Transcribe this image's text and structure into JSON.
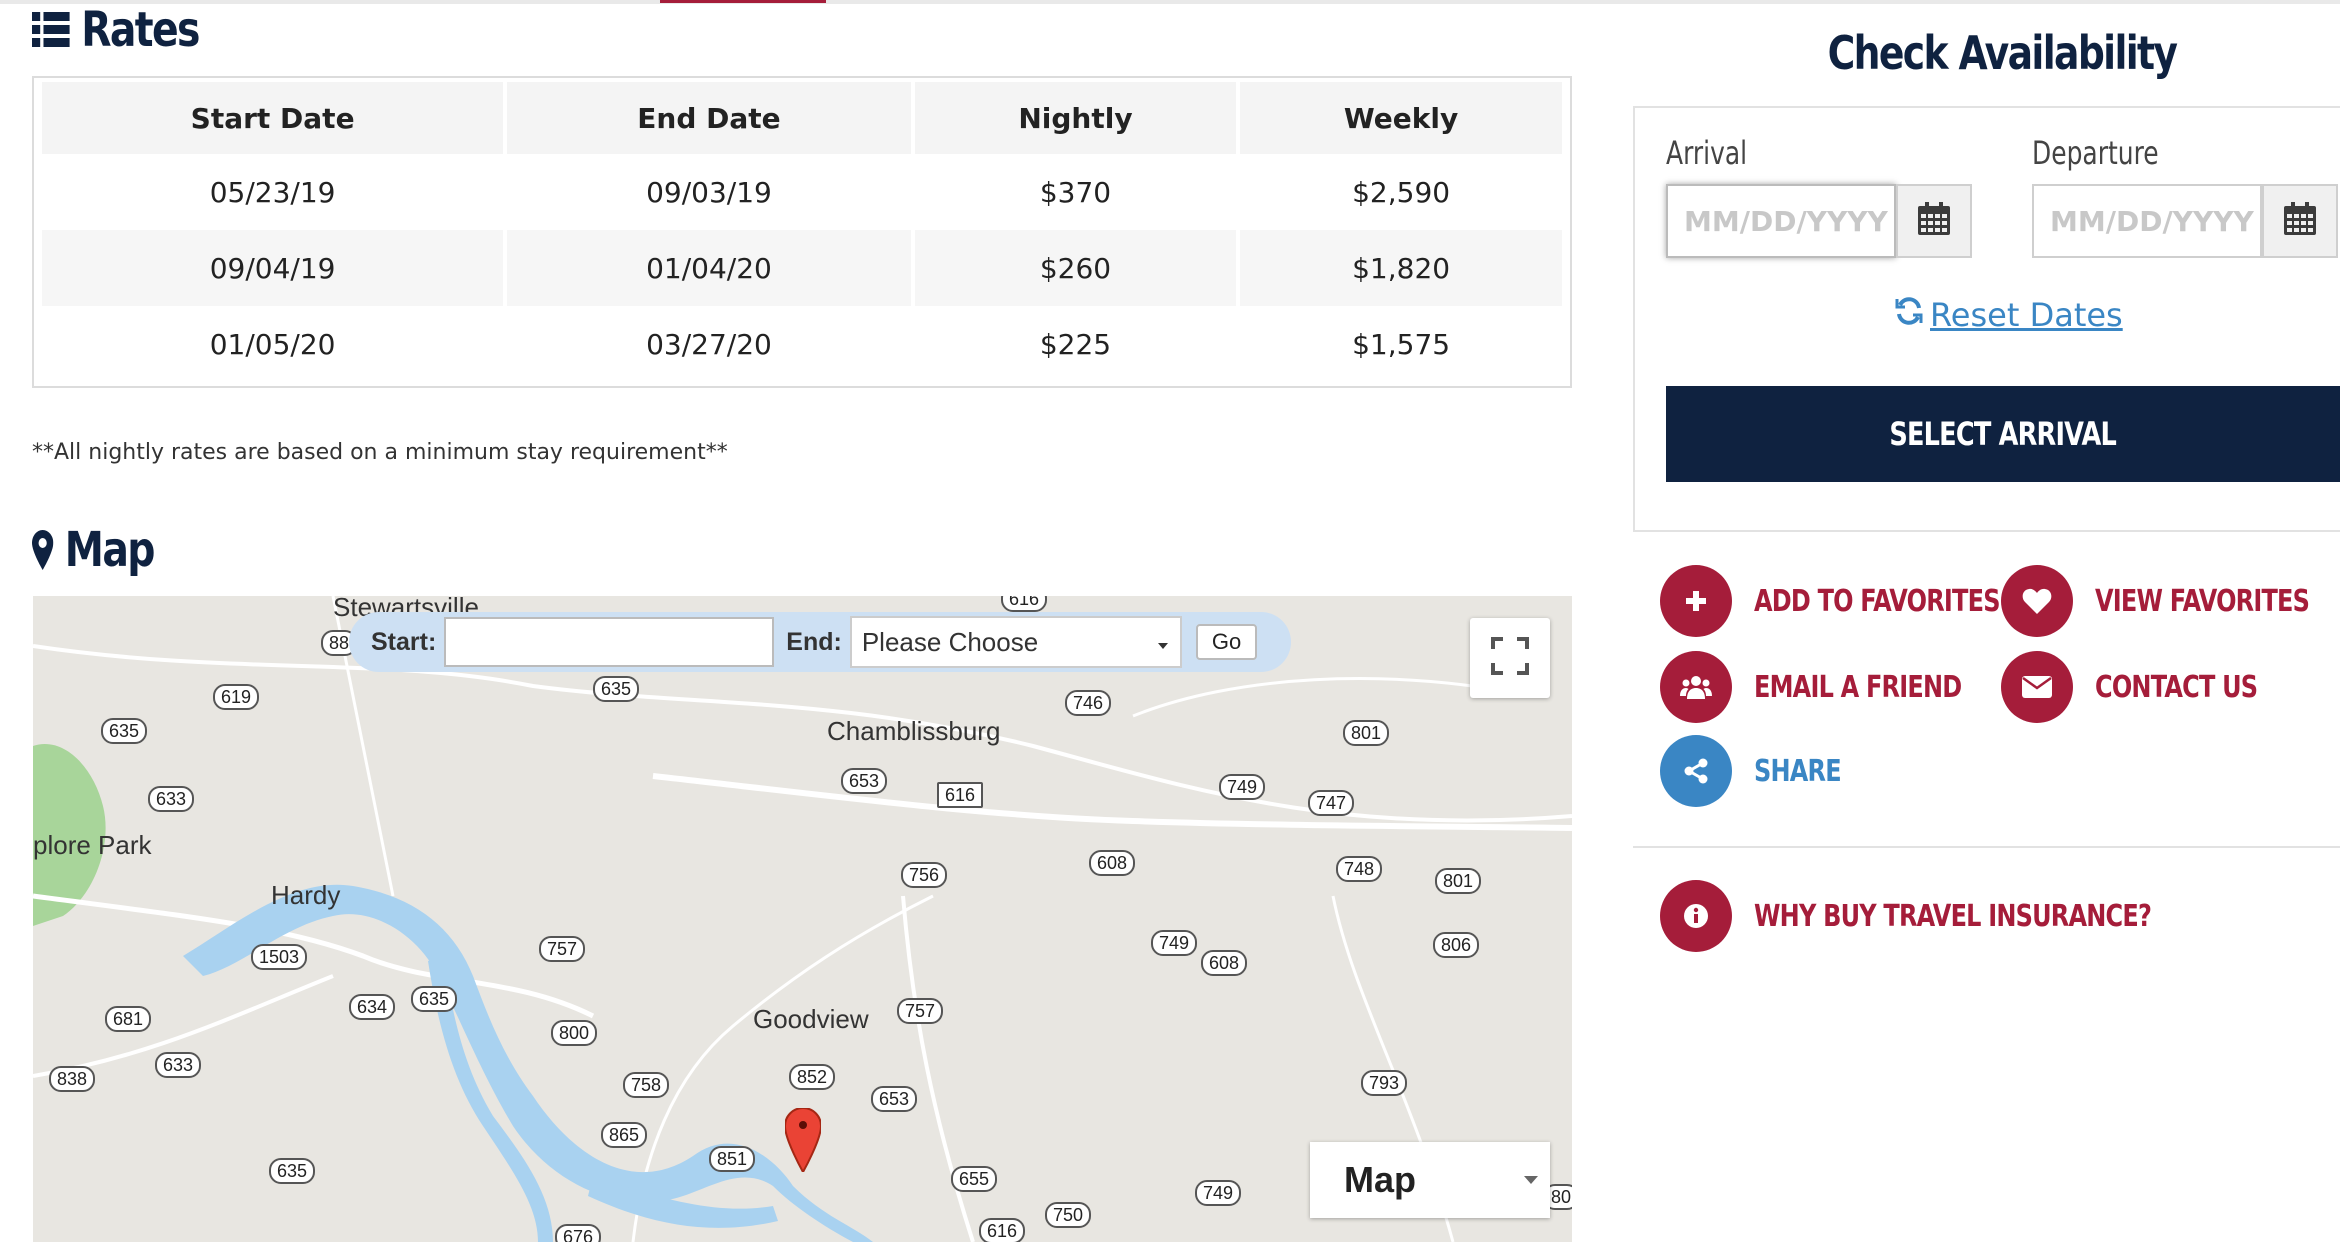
{
  "rates": {
    "heading": "Rates",
    "columns": [
      "Start Date",
      "End Date",
      "Nightly",
      "Weekly"
    ],
    "rows": [
      [
        "05/23/19",
        "09/03/19",
        "$370",
        "$2,590"
      ],
      [
        "09/04/19",
        "01/04/20",
        "$260",
        "$1,820"
      ],
      [
        "01/05/20",
        "03/27/20",
        "$225",
        "$1,575"
      ]
    ],
    "note": "**All nightly rates are based on a minimum stay requirement**"
  },
  "map": {
    "heading": "Map",
    "route": {
      "start_label": "Start:",
      "start_value": "",
      "end_label": "End:",
      "end_value": "Please Choose",
      "go_label": "Go"
    },
    "type_label": "Map",
    "places": [
      "Stewartsville",
      "Chamblissburg",
      "plore Park",
      "Hardy",
      "Goodview"
    ],
    "route_numbers": [
      "616",
      "88",
      "635",
      "746",
      "619",
      "635",
      "801",
      "633",
      "653",
      "616",
      "749",
      "747",
      "756",
      "608",
      "748",
      "801",
      "1503",
      "757",
      "749",
      "608",
      "806",
      "634",
      "635",
      "681",
      "800",
      "757",
      "633",
      "838",
      "758",
      "852",
      "653",
      "793",
      "865",
      "851",
      "655",
      "749",
      "635",
      "750",
      "616",
      "676",
      "80"
    ]
  },
  "availability": {
    "title": "Check Availability",
    "arrival_label": "Arrival",
    "departure_label": "Departure",
    "arrival_placeholder": "MM/DD/YYYY",
    "departure_placeholder": "MM/DD/YYYY",
    "reset_label": "Reset Dates",
    "select_button": "SELECT ARRIVAL"
  },
  "actions": {
    "add_favorites": "ADD TO FAVORITES",
    "view_favorites": "VIEW FAVORITES",
    "email_friend": "EMAIL A FRIEND",
    "contact_us": "CONTACT US",
    "share": "SHARE",
    "travel_insurance": "WHY BUY TRAVEL INSURANCE?"
  },
  "colors": {
    "navy": "#0f2240",
    "crimson": "#a51d3a",
    "link_blue": "#3a86c4",
    "water": "#a9d2f0",
    "park": "#a8d59a"
  }
}
